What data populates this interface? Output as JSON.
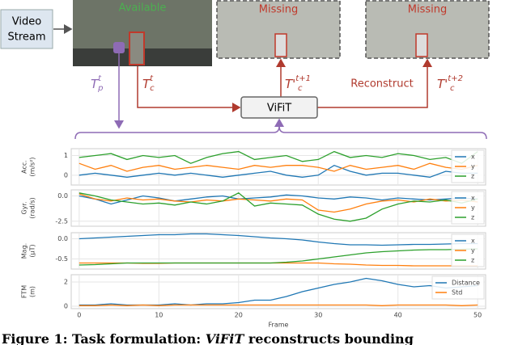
{
  "diagram": {
    "source": [
      "Video",
      "Stream"
    ],
    "frames": [
      "Available",
      "Missing",
      "Missing"
    ],
    "model": "ViFiT",
    "action": "Reconstruct",
    "tp": {
      "base": "T",
      "sub": "p",
      "sup": "t"
    },
    "tc": {
      "base": "T",
      "sub": "c",
      "sup": "t"
    },
    "tc1": {
      "base": "T'",
      "sub": "c",
      "sup": "t+1"
    },
    "tc2": {
      "base": "T'",
      "sub": "c",
      "sup": "t+2"
    },
    "caption": [
      "Figure 1: Task formulation: ",
      "ViFiT",
      " reconstructs bounding"
    ]
  },
  "chart_data": [
    {
      "type": "line",
      "ylabel": [
        "Acc.",
        "(m/s²)"
      ],
      "xlim": [
        -1,
        51
      ],
      "xticks": [
        0,
        10,
        20,
        30,
        40,
        50
      ],
      "ylim": [
        -0.5,
        1.35
      ],
      "yticks": [
        0,
        1
      ],
      "grid": true,
      "legend": "upper right",
      "x": [
        0,
        2,
        4,
        6,
        8,
        10,
        12,
        14,
        16,
        18,
        20,
        22,
        24,
        26,
        28,
        30,
        32,
        34,
        36,
        38,
        40,
        42,
        44,
        46,
        48,
        50
      ],
      "series": [
        {
          "name": "x",
          "color": "#1f77b4",
          "values": [
            0,
            0.1,
            0,
            -0.1,
            0,
            0.1,
            0,
            0.1,
            0,
            -0.1,
            0,
            0.1,
            0.2,
            0,
            -0.1,
            0,
            0.5,
            0.2,
            0,
            0.1,
            0.1,
            0,
            -0.1,
            0.2,
            0.1,
            0.1
          ]
        },
        {
          "name": "y",
          "color": "#ff7f0e",
          "values": [
            0.6,
            0.3,
            0.5,
            0.2,
            0.4,
            0.5,
            0.3,
            0.4,
            0.5,
            0.4,
            0.3,
            0.5,
            0.4,
            0.5,
            0.5,
            0.4,
            0.2,
            0.5,
            0.3,
            0.4,
            0.5,
            0.3,
            0.6,
            0.4,
            0.3,
            0.5
          ]
        },
        {
          "name": "z",
          "color": "#2ca02c",
          "values": [
            0.9,
            1.0,
            1.1,
            0.8,
            1.0,
            0.9,
            1.0,
            0.6,
            0.9,
            1.1,
            1.2,
            0.8,
            0.9,
            1.0,
            0.7,
            0.8,
            1.2,
            0.9,
            1.0,
            0.9,
            1.1,
            1.0,
            0.8,
            0.9,
            0.6,
            1.2
          ]
        }
      ]
    },
    {
      "type": "line",
      "ylabel": [
        "Gyr.",
        "(rad/s)"
      ],
      "xlim": [
        -1,
        51
      ],
      "xticks": [
        0,
        10,
        20,
        30,
        40,
        50
      ],
      "ylim": [
        -3.0,
        0.6
      ],
      "yticks": [
        {
          "value": 0,
          "label": "0.0"
        },
        {
          "value": -2.5,
          "label": "-2.5"
        }
      ],
      "grid": true,
      "legend": "upper right",
      "x": [
        0,
        2,
        4,
        6,
        8,
        10,
        12,
        14,
        16,
        18,
        20,
        22,
        24,
        26,
        28,
        30,
        32,
        34,
        36,
        38,
        40,
        42,
        44,
        46,
        48,
        50
      ],
      "series": [
        {
          "name": "x",
          "color": "#1f77b4",
          "values": [
            0,
            -0.3,
            -0.8,
            -0.4,
            0,
            -0.2,
            -0.5,
            -0.3,
            -0.1,
            0,
            -0.3,
            -0.2,
            -0.1,
            0.1,
            0,
            -0.2,
            -0.3,
            -0.1,
            -0.2,
            -0.4,
            -0.2,
            -0.3,
            -0.4,
            -0.3,
            -0.2,
            -0.3
          ]
        },
        {
          "name": "y",
          "color": "#ff7f0e",
          "values": [
            0.2,
            -0.3,
            -0.5,
            -0.2,
            -0.4,
            -0.3,
            -0.5,
            -0.6,
            -0.4,
            -0.5,
            -0.3,
            -0.4,
            -0.5,
            -0.3,
            -0.4,
            -1.4,
            -1.6,
            -1.3,
            -0.8,
            -0.5,
            -0.4,
            -0.6,
            -0.3,
            -0.5,
            -0.4,
            -0.6
          ]
        },
        {
          "name": "z",
          "color": "#2ca02c",
          "values": [
            0.3,
            0,
            -0.4,
            -0.6,
            -0.8,
            -0.7,
            -0.9,
            -0.6,
            -0.8,
            -0.5,
            0.3,
            -1.0,
            -0.7,
            -0.8,
            -0.9,
            -1.8,
            -2.3,
            -2.5,
            -2.2,
            -1.3,
            -0.8,
            -0.5,
            -0.6,
            -0.4,
            -0.7,
            -0.3
          ]
        }
      ]
    },
    {
      "type": "line",
      "ylabel": [
        "Mag.",
        "(μT)"
      ],
      "xlim": [
        -1,
        51
      ],
      "xticks": [
        0,
        10,
        20,
        30,
        40,
        50
      ],
      "ylim": [
        -0.75,
        0.15
      ],
      "yticks": [
        {
          "value": 0,
          "label": "0.0"
        },
        {
          "value": -0.5,
          "label": "-0.5"
        }
      ],
      "grid": true,
      "legend": "upper right",
      "x": [
        0,
        2,
        4,
        6,
        8,
        10,
        12,
        14,
        16,
        18,
        20,
        22,
        24,
        26,
        28,
        30,
        32,
        34,
        36,
        38,
        40,
        42,
        44,
        46,
        48,
        50
      ],
      "series": [
        {
          "name": "x",
          "color": "#1f77b4",
          "values": [
            0.0,
            0.02,
            0.04,
            0.06,
            0.08,
            0.1,
            0.1,
            0.12,
            0.12,
            0.1,
            0.08,
            0.05,
            0.02,
            0,
            -0.03,
            -0.08,
            -0.12,
            -0.15,
            -0.15,
            -0.16,
            -0.15,
            -0.14,
            -0.14,
            -0.13,
            -0.12,
            -0.12
          ]
        },
        {
          "name": "y",
          "color": "#ff7f0e",
          "values": [
            -0.6,
            -0.6,
            -0.6,
            -0.6,
            -0.61,
            -0.61,
            -0.6,
            -0.6,
            -0.6,
            -0.6,
            -0.6,
            -0.6,
            -0.6,
            -0.6,
            -0.6,
            -0.6,
            -0.62,
            -0.63,
            -0.65,
            -0.66,
            -0.66,
            -0.67,
            -0.67,
            -0.67,
            -0.67,
            -0.67
          ]
        },
        {
          "name": "z",
          "color": "#2ca02c",
          "values": [
            -0.65,
            -0.64,
            -0.62,
            -0.6,
            -0.6,
            -0.6,
            -0.6,
            -0.6,
            -0.6,
            -0.6,
            -0.6,
            -0.6,
            -0.6,
            -0.58,
            -0.55,
            -0.5,
            -0.45,
            -0.4,
            -0.35,
            -0.32,
            -0.3,
            -0.28,
            -0.27,
            -0.27,
            -0.26,
            -0.25
          ]
        }
      ]
    },
    {
      "type": "line",
      "ylabel": [
        "FTM",
        "(m)"
      ],
      "xlabel": "Frame",
      "xlim": [
        -1,
        51
      ],
      "xticks": [
        0,
        10,
        20,
        30,
        40,
        50
      ],
      "ylim": [
        -0.2,
        2.6
      ],
      "yticks": [
        0,
        2
      ],
      "grid": true,
      "legend": "upper right",
      "x": [
        0,
        2,
        4,
        6,
        8,
        10,
        12,
        14,
        16,
        18,
        20,
        22,
        24,
        26,
        28,
        30,
        32,
        34,
        36,
        38,
        40,
        42,
        44,
        46,
        48,
        50
      ],
      "series": [
        {
          "name": "Distance",
          "color": "#1f77b4",
          "values": [
            0.1,
            0.1,
            0.2,
            0.1,
            0.1,
            0.1,
            0.2,
            0.1,
            0.2,
            0.2,
            0.3,
            0.5,
            0.5,
            0.8,
            1.2,
            1.5,
            1.8,
            2.0,
            2.3,
            2.1,
            1.8,
            1.6,
            1.7,
            1.5,
            1.6,
            1.7
          ]
        },
        {
          "name": "Std",
          "color": "#ff7f0e",
          "values": [
            0.05,
            0.05,
            0.1,
            0.05,
            0.1,
            0.05,
            0.1,
            0.1,
            0.1,
            0.1,
            0.1,
            0.1,
            0.1,
            0.1,
            0.1,
            0.1,
            0.1,
            0.1,
            0.1,
            0.05,
            0.1,
            0.1,
            0.1,
            0.1,
            0.05,
            0.1
          ]
        }
      ]
    }
  ]
}
